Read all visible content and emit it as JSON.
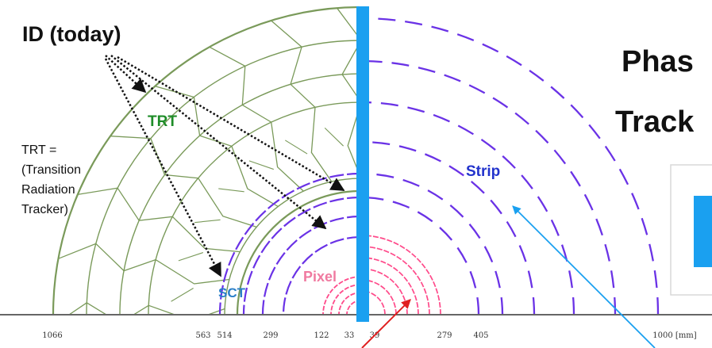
{
  "labels": {
    "id_today": "ID (today)",
    "trt": "TRT",
    "trt_definition": [
      "TRT =",
      "(Transition",
      "Radiation",
      "Tracker)"
    ],
    "sct": "SCT",
    "pixel": "Pixel",
    "strip": "Strip",
    "phase_title_line1": "Phas",
    "phase_title_line2": "Track"
  },
  "axis": {
    "left_ticks": [
      "1066",
      "563",
      "514",
      "299",
      "122",
      "33"
    ],
    "right_ticks": [
      "39",
      "279",
      "405",
      "1000 [mm]"
    ]
  },
  "colors": {
    "trt_structure": "#7a9a5a",
    "trt_label": "#1e8c28",
    "sct_strip_layers": "#6a32e6",
    "sct_label": "#2a7fc8",
    "pixel_layers": "#ff4a8a",
    "pixel_label": "#f07aa0",
    "strip_label": "#2233cc",
    "divider_bar": "#1aa0f0",
    "red_arrow": "#e02020",
    "blue_arrow": "#1aa0f0",
    "pointer_arrows": "#111111"
  }
}
